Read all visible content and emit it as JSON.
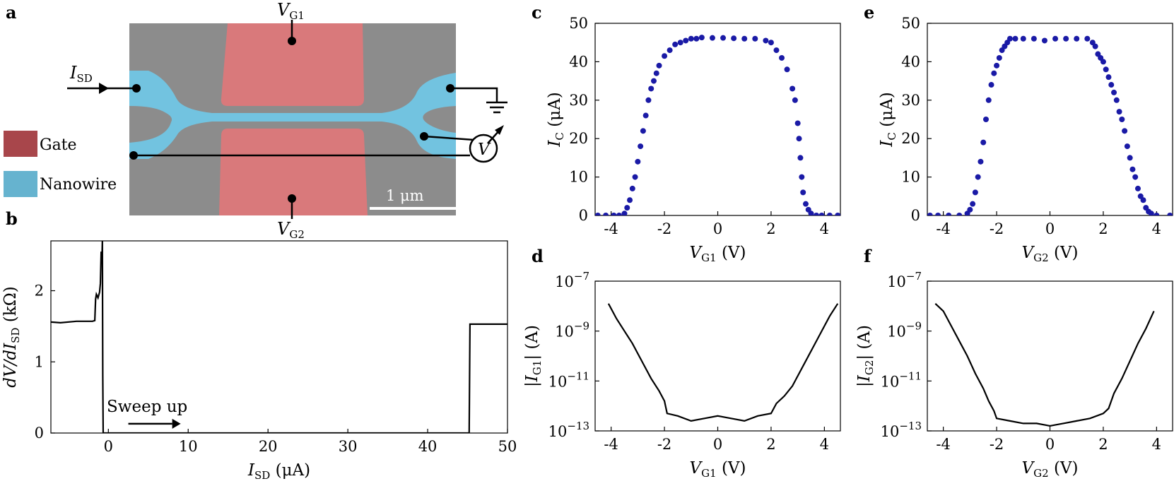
{
  "panel_labels": {
    "a": "a",
    "b": "b",
    "c": "c",
    "d": "d",
    "e": "e",
    "f": "f"
  },
  "panel_a": {
    "labels": {
      "isd": "I",
      "isd_sub": "SD",
      "vg1": "V",
      "vg1_sub": "G1",
      "vg2": "V",
      "vg2_sub": "G2",
      "voltmeter": "V",
      "scalebar": "1 μm"
    },
    "legend": [
      {
        "label": "Gate",
        "color": "#a8464b"
      },
      {
        "label": "Nanowire",
        "color": "#66b3cf"
      }
    ],
    "colors": {
      "sem_background": "#8c8c8c",
      "gate": "#d9797b",
      "nanowire": "#72c3e0"
    }
  },
  "chart_data": [
    {
      "id": "b",
      "type": "line",
      "xlabel": {
        "pre": "I",
        "sub": "SD",
        "post": " (μA)"
      },
      "ylabel": {
        "pre": "dV/dI",
        "sub": "SD",
        "post": " (kΩ)"
      },
      "xlim": [
        -7.2,
        50
      ],
      "ylim": [
        0,
        2.7
      ],
      "xticks": [
        "0",
        "10",
        "20",
        "30",
        "40",
        "50"
      ],
      "yticks": [
        "0",
        "1",
        "2"
      ],
      "annotation": "Sweep up",
      "series": [
        {
          "x": [
            -7.2,
            -6,
            -4,
            -2,
            -1.7,
            -1.6,
            -1.5,
            -1.3,
            -1.1,
            -1.0,
            -0.9,
            -0.8,
            -0.75,
            -0.7,
            -0.65,
            0,
            10,
            20,
            30,
            40,
            45.2,
            45.3,
            46,
            50
          ],
          "y": [
            1.56,
            1.55,
            1.57,
            1.57,
            1.58,
            1.88,
            1.95,
            1.9,
            1.98,
            2.1,
            2.55,
            2.45,
            2.7,
            0.8,
            0.0,
            0.0,
            0.0,
            0.0,
            0.0,
            0.0,
            0.0,
            1.53,
            1.53,
            1.53
          ]
        }
      ]
    },
    {
      "id": "c",
      "type": "scatter",
      "xlabel": {
        "pre": "V",
        "sub": "G1",
        "post": " (V)"
      },
      "ylabel": {
        "pre": "I",
        "sub": "C",
        "post": " (μA)"
      },
      "xlim": [
        -4.6,
        4.6
      ],
      "ylim": [
        0,
        50
      ],
      "xticks": [
        "-4",
        "-2",
        "0",
        "2",
        "4"
      ],
      "yticks": [
        "0",
        "10",
        "20",
        "30",
        "40",
        "50"
      ],
      "color": "#1a1aa6",
      "x": [
        -4.5,
        -4.2,
        -3.9,
        -3.7,
        -3.5,
        -3.4,
        -3.3,
        -3.2,
        -3.1,
        -3.0,
        -2.9,
        -2.8,
        -2.7,
        -2.6,
        -2.5,
        -2.4,
        -2.3,
        -2.2,
        -2.0,
        -1.8,
        -1.6,
        -1.4,
        -1.2,
        -1.0,
        -0.8,
        -0.6,
        -0.2,
        0.2,
        0.6,
        1.0,
        1.4,
        1.8,
        2.0,
        2.2,
        2.4,
        2.6,
        2.8,
        2.9,
        3.0,
        3.05,
        3.1,
        3.15,
        3.2,
        3.3,
        3.4,
        3.5,
        3.7,
        3.9,
        4.2,
        4.5
      ],
      "y": [
        0,
        0,
        0,
        0,
        0.5,
        2,
        4,
        7,
        10,
        14,
        18,
        22,
        26,
        30,
        33,
        35,
        37,
        39,
        41.5,
        43,
        44.5,
        45,
        45.5,
        46,
        46,
        46.3,
        46.2,
        46.2,
        46.1,
        46,
        46,
        45.5,
        45,
        43,
        41,
        38,
        33,
        30,
        24,
        20,
        15,
        10,
        6,
        3,
        1.5,
        0.5,
        0,
        0,
        0,
        0
      ]
    },
    {
      "id": "d",
      "type": "line",
      "xlabel": {
        "pre": "V",
        "sub": "G1",
        "post": " (V)"
      },
      "ylabel": {
        "pre": "|I",
        "sub": "G1",
        "post": "| (A)"
      },
      "xlim": [
        -4.6,
        4.6
      ],
      "ylim": [
        -13,
        -7
      ],
      "yscale": "log",
      "xticks": [
        "-4",
        "-2",
        "0",
        "2",
        "4"
      ],
      "yticks": [
        "10^-7",
        "10^-9",
        "10^-11",
        "10^-13"
      ],
      "series": [
        {
          "x": [
            -4.1,
            -3.8,
            -3.5,
            -3.2,
            -3.0,
            -2.8,
            -2.5,
            -2.2,
            -2.0,
            -1.9,
            -1.5,
            -1.0,
            -0.5,
            0,
            0.5,
            1.0,
            1.5,
            2.0,
            2.2,
            2.5,
            2.8,
            3.0,
            3.3,
            3.6,
            3.9,
            4.2,
            4.5
          ],
          "y": [
            -7.9,
            -8.5,
            -9.0,
            -9.5,
            -9.9,
            -10.3,
            -10.9,
            -11.4,
            -11.8,
            -12.3,
            -12.4,
            -12.6,
            -12.5,
            -12.4,
            -12.5,
            -12.6,
            -12.4,
            -12.3,
            -11.9,
            -11.6,
            -11.2,
            -10.8,
            -10.2,
            -9.6,
            -9.0,
            -8.4,
            -7.9
          ]
        }
      ]
    },
    {
      "id": "e",
      "type": "scatter",
      "xlabel": {
        "pre": "V",
        "sub": "G2",
        "post": " (V)"
      },
      "ylabel": {
        "pre": "I",
        "sub": "C",
        "post": " (μA)"
      },
      "xlim": [
        -4.6,
        4.6
      ],
      "ylim": [
        0,
        50
      ],
      "xticks": [
        "-4",
        "-2",
        "0",
        "2",
        "4"
      ],
      "yticks": [
        "0",
        "10",
        "20",
        "30",
        "40",
        "50"
      ],
      "color": "#1a1aa6",
      "x": [
        -4.5,
        -4.2,
        -3.8,
        -3.4,
        -3.1,
        -3.0,
        -2.9,
        -2.8,
        -2.7,
        -2.6,
        -2.5,
        -2.4,
        -2.3,
        -2.2,
        -2.1,
        -2.0,
        -1.9,
        -1.8,
        -1.7,
        -1.6,
        -1.5,
        -1.3,
        -1.0,
        -0.6,
        -0.2,
        0.2,
        0.6,
        1.0,
        1.4,
        1.6,
        1.7,
        1.8,
        1.9,
        2.0,
        2.1,
        2.2,
        2.3,
        2.4,
        2.5,
        2.6,
        2.7,
        2.8,
        2.9,
        3.0,
        3.1,
        3.2,
        3.3,
        3.4,
        3.5,
        3.6,
        3.7,
        3.8,
        4.0,
        4.5
      ],
      "y": [
        0,
        0,
        0,
        0,
        0.5,
        1.5,
        3,
        6,
        10,
        14,
        19,
        25,
        30,
        34,
        37,
        39,
        41,
        43,
        44,
        45,
        46,
        46,
        46,
        46,
        45.5,
        46,
        46,
        46,
        46,
        45,
        44,
        42,
        41,
        40,
        38,
        36,
        34,
        32,
        30,
        27,
        25,
        22,
        18,
        15,
        12,
        10,
        7,
        5,
        4,
        2,
        1,
        0.5,
        0,
        0
      ]
    },
    {
      "id": "f",
      "type": "line",
      "xlabel": {
        "pre": "V",
        "sub": "G2",
        "post": " (V)"
      },
      "ylabel": {
        "pre": "|I",
        "sub": "G2",
        "post": "| (A)"
      },
      "xlim": [
        -4.6,
        4.6
      ],
      "ylim": [
        -13,
        -7
      ],
      "yscale": "log",
      "xticks": [
        "-4",
        "-2",
        "0",
        "2",
        "4"
      ],
      "yticks": [
        "10^-7",
        "10^-9",
        "10^-11",
        "10^-13"
      ],
      "series": [
        {
          "x": [
            -4.3,
            -4.0,
            -3.7,
            -3.4,
            -3.1,
            -2.8,
            -2.5,
            -2.3,
            -2.1,
            -2.0,
            -1.5,
            -1.0,
            -0.5,
            0,
            0.5,
            1.0,
            1.5,
            2.0,
            2.2,
            2.4,
            2.7,
            3.0,
            3.3,
            3.6,
            3.9
          ],
          "y": [
            -7.9,
            -8.2,
            -8.8,
            -9.4,
            -10.0,
            -10.7,
            -11.3,
            -11.8,
            -12.2,
            -12.5,
            -12.6,
            -12.7,
            -12.7,
            -12.8,
            -12.7,
            -12.6,
            -12.5,
            -12.3,
            -12.1,
            -11.5,
            -10.9,
            -10.2,
            -9.5,
            -8.9,
            -8.2
          ]
        }
      ]
    }
  ]
}
